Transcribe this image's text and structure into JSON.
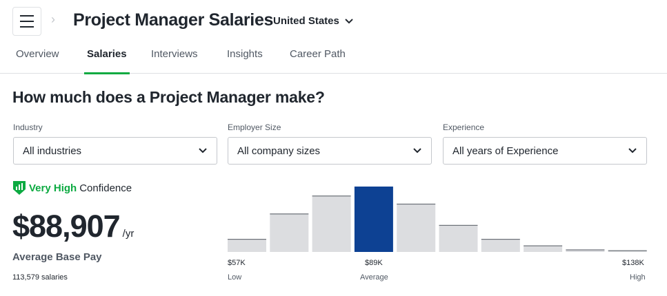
{
  "header": {
    "title": "Project Manager Salaries",
    "country": "United States"
  },
  "tabs": [
    {
      "label": "Overview",
      "active": false
    },
    {
      "label": "Salaries",
      "active": true
    },
    {
      "label": "Interviews",
      "active": false
    },
    {
      "label": "Insights",
      "active": false
    },
    {
      "label": "Career Path",
      "active": false
    }
  ],
  "main": {
    "heading": "How much does a Project Manager make?",
    "filters": [
      {
        "label": "Industry",
        "value": "All industries"
      },
      {
        "label": "Employer Size",
        "value": "All company sizes"
      },
      {
        "label": "Experience",
        "value": "All years of Experience"
      }
    ],
    "confidence": {
      "level": "Very High",
      "text": "Confidence"
    },
    "salary": {
      "amount": "$88,907",
      "period": "/yr",
      "label": "Average Base Pay",
      "count": "113,579 salaries"
    }
  },
  "colors": {
    "accent_green": "#0caa41",
    "highlight_bar": "#0d4193",
    "bar": "#dcdde0",
    "text": "#20262e"
  },
  "chart_data": {
    "type": "bar",
    "values": [
      16,
      47,
      69,
      80,
      59,
      33,
      16,
      8,
      3,
      2
    ],
    "highlight_index": 3,
    "tick_labels": {
      "low": "$57K",
      "average": "$89K",
      "high": "$138K"
    },
    "sub_labels": {
      "low": "Low",
      "average": "Average",
      "high": "High"
    }
  }
}
